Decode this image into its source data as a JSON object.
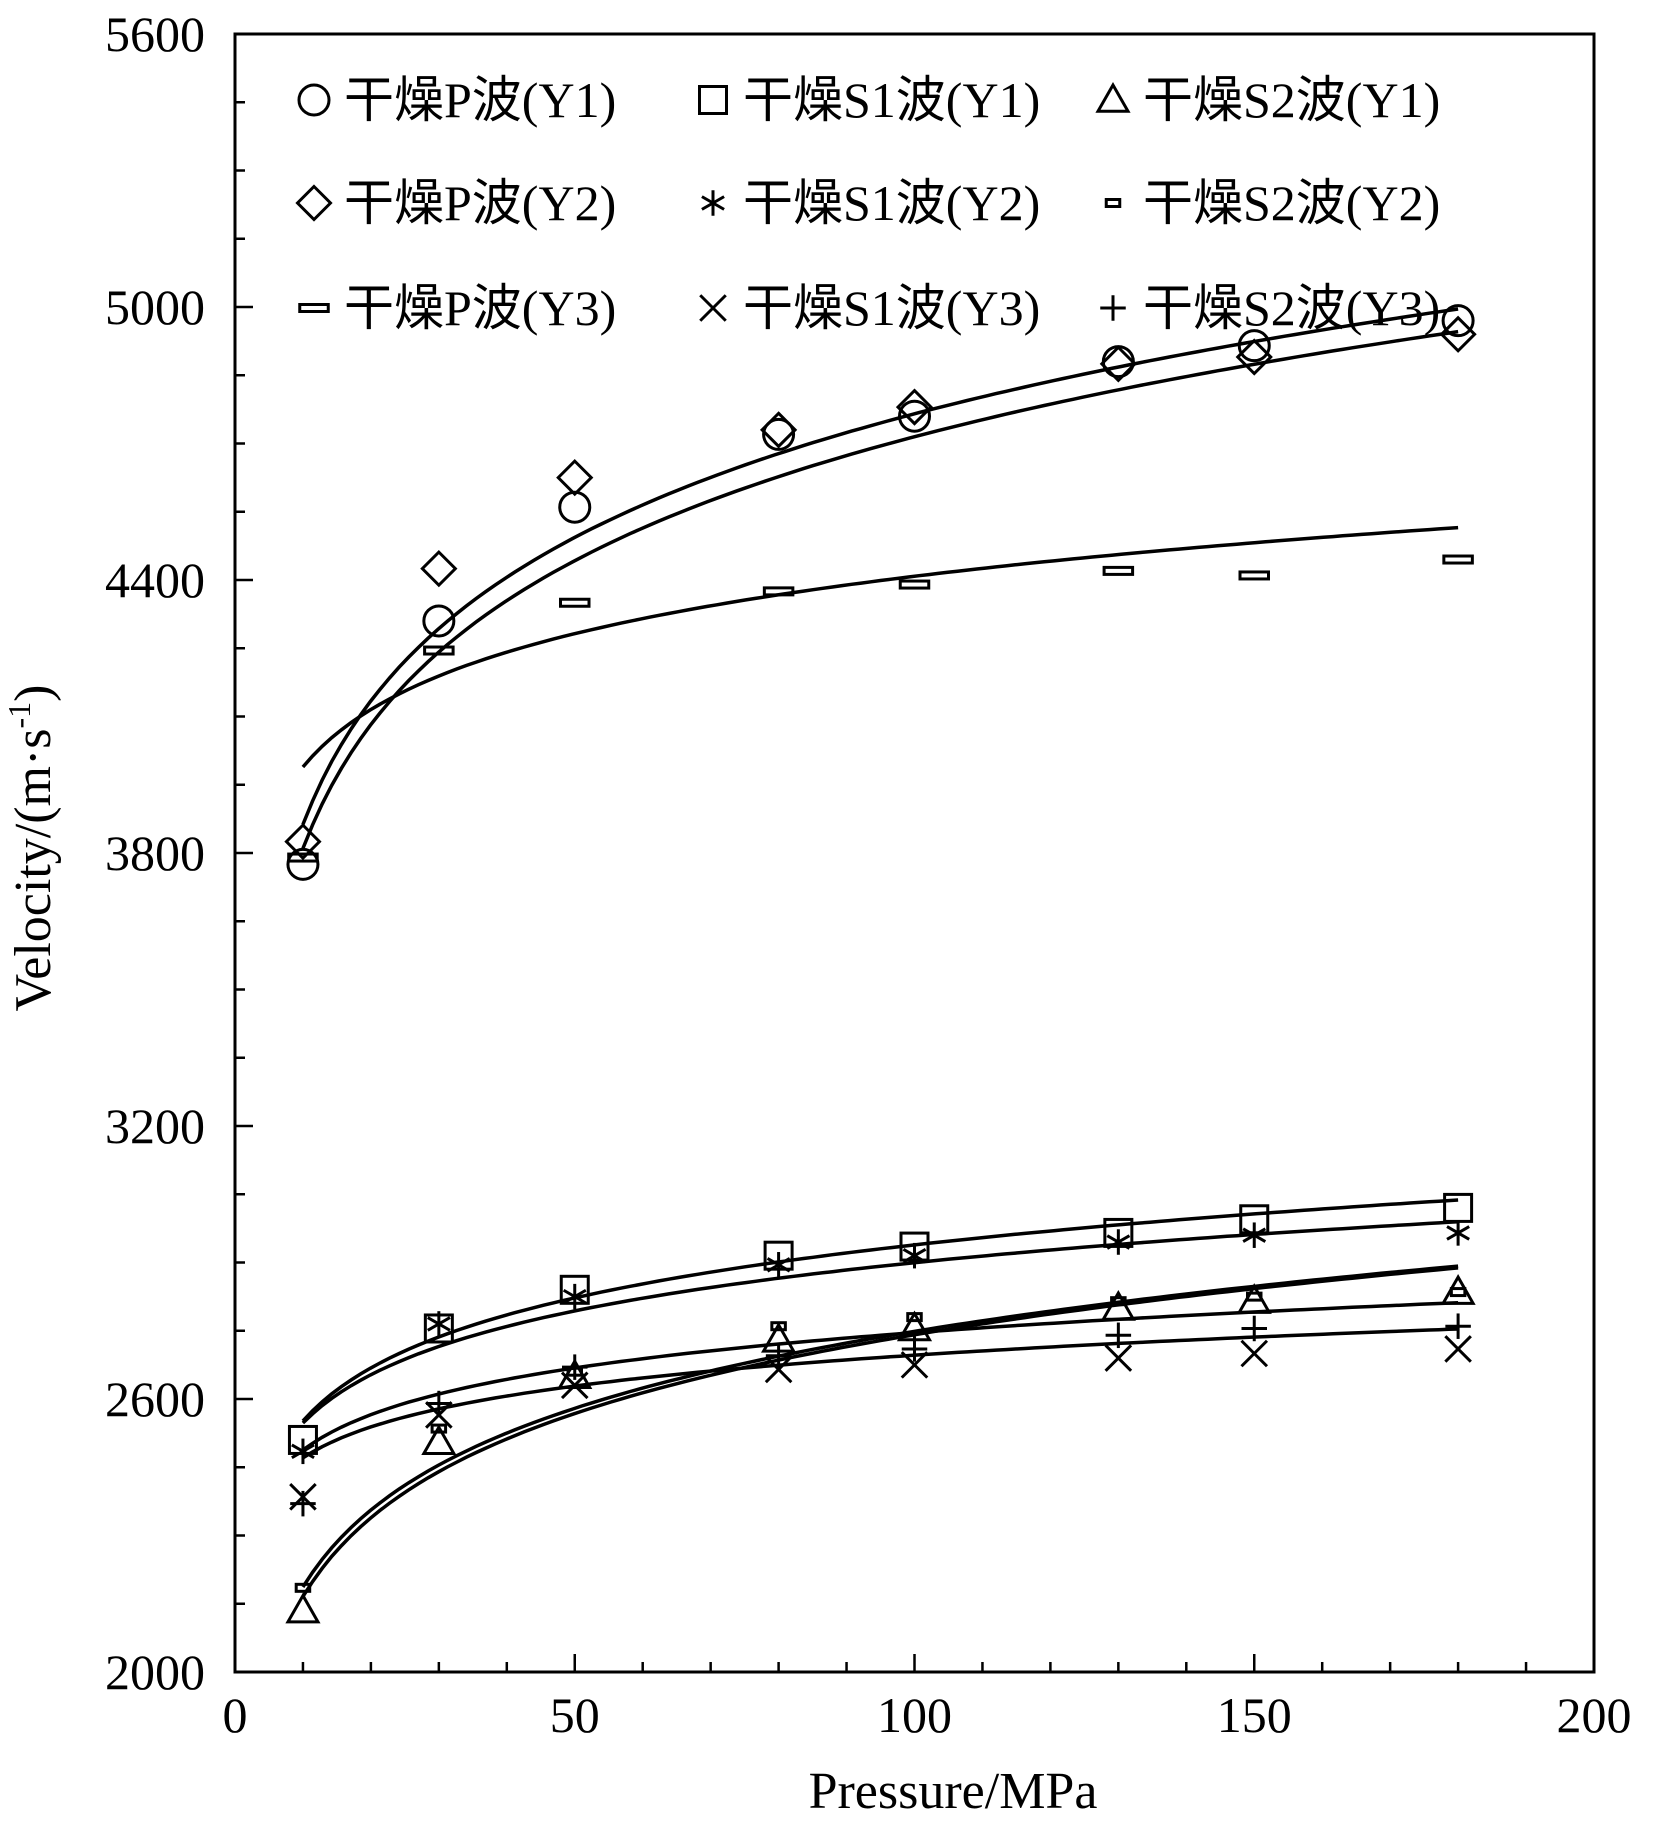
{
  "chart_data": {
    "type": "scatter",
    "title": "",
    "xlabel": "Pressure/MPa",
    "ylabel_parts": [
      "Velocity/(m·s",
      "-1",
      ")"
    ],
    "xlim": [
      0,
      200
    ],
    "ylim": [
      2000,
      5600
    ],
    "x_ticks": [
      0,
      50,
      100,
      150,
      200
    ],
    "y_ticks": [
      2000,
      2600,
      3200,
      3800,
      4400,
      5000,
      5600
    ],
    "grid": false,
    "legend_position": "top-left",
    "series": [
      {
        "name": "干燥P波(Y1)",
        "marker": "circle",
        "x": [
          10,
          30,
          50,
          80,
          100,
          130,
          150,
          180
        ],
        "y": [
          3775,
          4310,
          4560,
          4720,
          4760,
          4880,
          4915,
          4970
        ],
        "fit": {
          "a": 2905,
          "b": 393
        }
      },
      {
        "name": "干燥S1波(Y1)",
        "marker": "square",
        "x": [
          10,
          30,
          50,
          80,
          100,
          130,
          150,
          180
        ],
        "y": [
          2510,
          2755,
          2840,
          2915,
          2935,
          2965,
          2995,
          3020
        ],
        "fit": {
          "a": 2165,
          "b": 168
        }
      },
      {
        "name": "干燥S2波(Y1)",
        "marker": "triangle",
        "x": [
          10,
          30,
          50,
          80,
          100,
          130,
          150,
          180
        ],
        "y": [
          2135,
          2505,
          2650,
          2730,
          2755,
          2800,
          2815,
          2835
        ],
        "fit": {
          "a": 1590,
          "b": 250
        }
      },
      {
        "name": "干燥P波(Y2)",
        "marker": "diamond",
        "x": [
          10,
          30,
          50,
          80,
          100,
          130,
          150,
          180
        ],
        "y": [
          3825,
          4425,
          4625,
          4730,
          4780,
          4875,
          4890,
          4940
        ],
        "fit": {
          "a": 2960,
          "b": 392
        }
      },
      {
        "name": "干燥S1波(Y2)",
        "marker": "asterisk",
        "x": [
          10,
          30,
          50,
          80,
          100,
          130,
          150,
          180
        ],
        "y": [
          2485,
          2765,
          2825,
          2895,
          2915,
          2945,
          2960,
          2965
        ],
        "fit": {
          "a": 2195,
          "b": 153
        }
      },
      {
        "name": "干燥S2波(Y2)",
        "marker": "dash-short",
        "x": [
          10,
          30,
          50,
          80,
          100,
          130,
          150,
          180
        ],
        "y": [
          2185,
          2535,
          2660,
          2760,
          2780,
          2815,
          2825,
          2835
        ],
        "fit": {
          "a": 1625,
          "b": 244
        }
      },
      {
        "name": "干燥P波(Y3)",
        "marker": "dash",
        "x": [
          10,
          30,
          50,
          80,
          100,
          130,
          150,
          180
        ],
        "y": [
          3790,
          4245,
          4350,
          4375,
          4390,
          4420,
          4410,
          4445
        ],
        "fit": {
          "a": 3570,
          "b": 182
        }
      },
      {
        "name": "干燥S1波(Y3)",
        "marker": "x",
        "x": [
          10,
          30,
          50,
          80,
          100,
          130,
          150,
          180
        ],
        "y": [
          2385,
          2565,
          2630,
          2665,
          2675,
          2690,
          2700,
          2710
        ],
        "fit": {
          "a": 2245,
          "b": 98
        }
      },
      {
        "name": "干燥S2波(Y3)",
        "marker": "plus",
        "x": [
          10,
          30,
          50,
          80,
          100,
          130,
          150,
          180
        ],
        "y": [
          2370,
          2590,
          2670,
          2695,
          2710,
          2740,
          2755,
          2760
        ],
        "fit": {
          "a": 2230,
          "b": 112
        }
      }
    ]
  }
}
